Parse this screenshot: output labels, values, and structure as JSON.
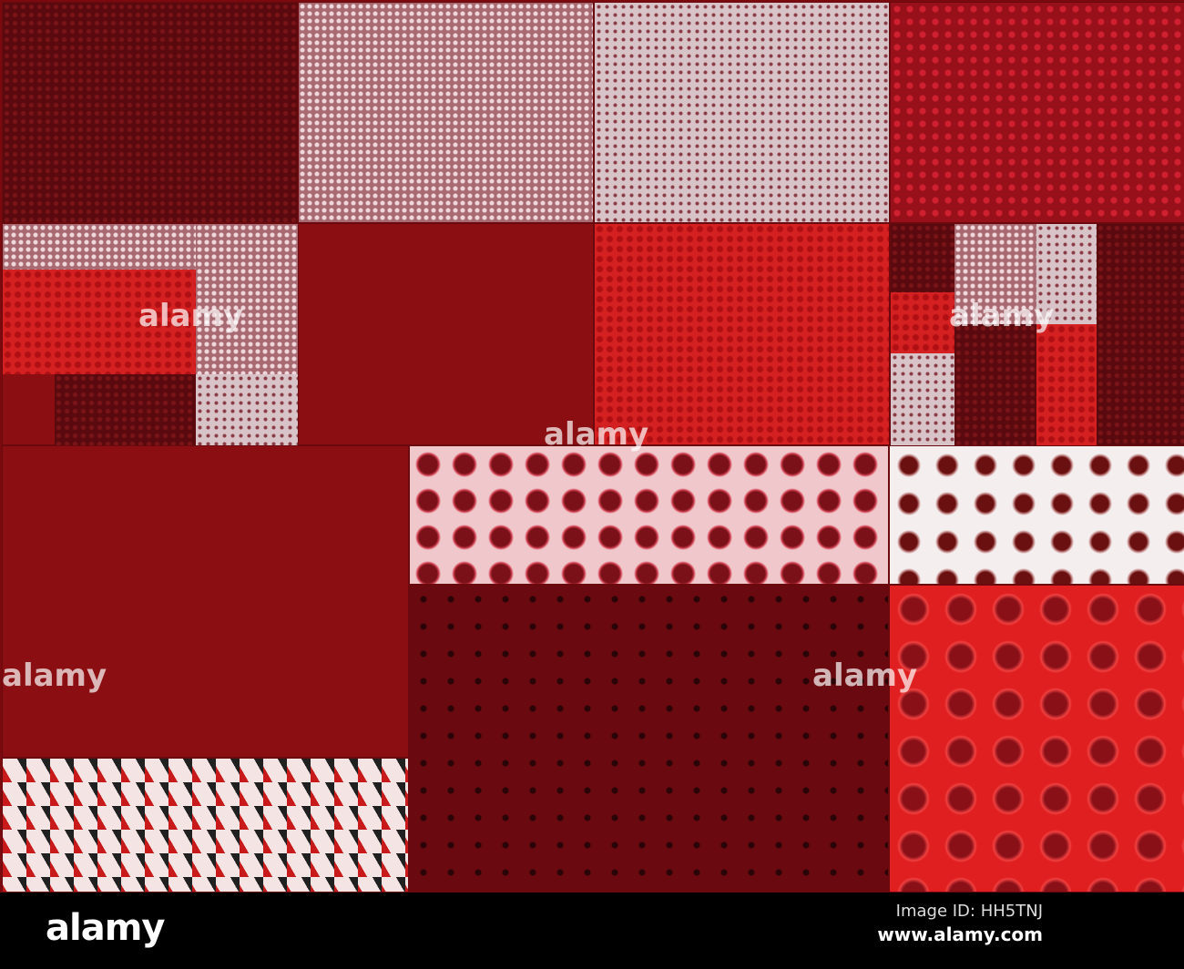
{
  "watermark": "alamy",
  "footer": {
    "logo": "alamy",
    "image_id": "Image ID: HH5TNJ",
    "url": "www.alamy.com"
  },
  "colors": {
    "dark_red": "#5a0a0e",
    "red": "#d42020",
    "bright_red": "#e02020",
    "pink": "#d8c4c8",
    "background": "#000000"
  }
}
